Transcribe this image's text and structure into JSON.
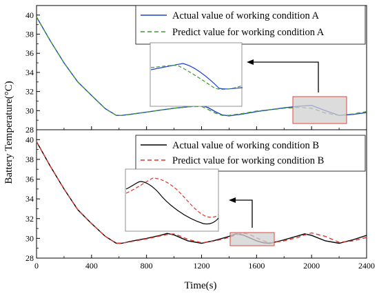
{
  "chart_data": [
    {
      "type": "line",
      "title": "",
      "xlabel": "Time(s)",
      "ylabel": "Battery Temperature(°C)",
      "xlim": [
        0,
        2400
      ],
      "ylim": [
        28,
        41
      ],
      "x_ticks": [
        "0",
        "400",
        "800",
        "1200",
        "1600",
        "2000",
        "2400"
      ],
      "y_ticks": [
        "28",
        "30",
        "32",
        "34",
        "36",
        "38",
        "40"
      ],
      "legend_position": "top-right",
      "series": [
        {
          "name": "Actual value of working condition A",
          "color": "#1f3fd6",
          "style": "solid",
          "x": [
            0,
            100,
            200,
            300,
            400,
            500,
            580,
            620,
            700,
            800,
            900,
            1000,
            1100,
            1200,
            1250,
            1300,
            1350,
            1400,
            1500,
            1600,
            1700,
            1800,
            1900,
            2000,
            2100,
            2200,
            2300,
            2400
          ],
          "y": [
            39.8,
            37.3,
            35.0,
            33.0,
            31.6,
            30.2,
            29.5,
            29.5,
            29.65,
            29.85,
            30.05,
            30.25,
            30.4,
            30.55,
            30.3,
            29.9,
            29.55,
            29.45,
            29.65,
            29.9,
            30.1,
            30.3,
            30.45,
            30.55,
            30.0,
            29.5,
            29.6,
            29.8
          ]
        },
        {
          "name": "Predict value for working condition A",
          "color": "#3a9b2f",
          "style": "dashed",
          "x": [
            0,
            100,
            200,
            300,
            400,
            500,
            580,
            620,
            700,
            800,
            900,
            1000,
            1100,
            1200,
            1250,
            1300,
            1350,
            1400,
            1500,
            1600,
            1700,
            1800,
            1900,
            2000,
            2100,
            2200,
            2300,
            2400
          ],
          "y": [
            39.8,
            37.3,
            35.0,
            33.0,
            31.6,
            30.2,
            29.5,
            29.5,
            29.65,
            29.85,
            30.05,
            30.25,
            30.4,
            30.45,
            30.1,
            29.75,
            29.5,
            29.5,
            29.7,
            29.95,
            30.1,
            30.25,
            30.35,
            30.25,
            29.75,
            29.5,
            29.65,
            29.9
          ]
        }
      ]
    },
    {
      "type": "line",
      "title": "",
      "xlabel": "Time(s)",
      "ylabel": "Battery Temperature(°C)",
      "xlim": [
        0,
        2400
      ],
      "ylim": [
        28,
        41
      ],
      "x_ticks": [
        "0",
        "400",
        "800",
        "1200",
        "1600",
        "2000",
        "2400"
      ],
      "y_ticks": [
        "28",
        "30",
        "32",
        "34",
        "36",
        "38",
        "40"
      ],
      "legend_position": "top-right",
      "series": [
        {
          "name": "Actual value of working condition B",
          "color": "#000000",
          "style": "solid",
          "x": [
            0,
            100,
            200,
            300,
            400,
            500,
            580,
            620,
            700,
            800,
            900,
            950,
            1000,
            1050,
            1100,
            1200,
            1300,
            1400,
            1450,
            1500,
            1550,
            1600,
            1650,
            1700,
            1800,
            1900,
            1950,
            2000,
            2100,
            2200,
            2300,
            2400
          ],
          "y": [
            39.8,
            37.3,
            35.0,
            32.9,
            31.5,
            30.2,
            29.5,
            29.5,
            29.75,
            30.0,
            30.3,
            30.5,
            30.35,
            30.05,
            29.75,
            29.5,
            29.8,
            30.2,
            30.45,
            30.35,
            30.05,
            29.75,
            29.55,
            29.5,
            29.85,
            30.25,
            30.45,
            30.3,
            29.75,
            29.5,
            29.85,
            30.3
          ]
        },
        {
          "name": "Predict value for working condition B",
          "color": "#e0332a",
          "style": "dashed",
          "x": [
            0,
            100,
            200,
            300,
            400,
            500,
            580,
            620,
            700,
            800,
            900,
            950,
            1000,
            1050,
            1100,
            1200,
            1300,
            1400,
            1450,
            1500,
            1550,
            1600,
            1650,
            1700,
            1800,
            1900,
            1950,
            2000,
            2100,
            2200,
            2300,
            2400
          ],
          "y": [
            39.8,
            37.3,
            35.0,
            32.9,
            31.5,
            30.2,
            29.5,
            29.5,
            29.7,
            29.95,
            30.25,
            30.4,
            30.45,
            30.2,
            29.9,
            29.55,
            29.75,
            30.1,
            30.35,
            30.55,
            30.4,
            30.05,
            29.75,
            29.55,
            29.75,
            30.1,
            30.35,
            30.55,
            30.2,
            29.6,
            29.75,
            30.1
          ]
        }
      ]
    }
  ]
}
